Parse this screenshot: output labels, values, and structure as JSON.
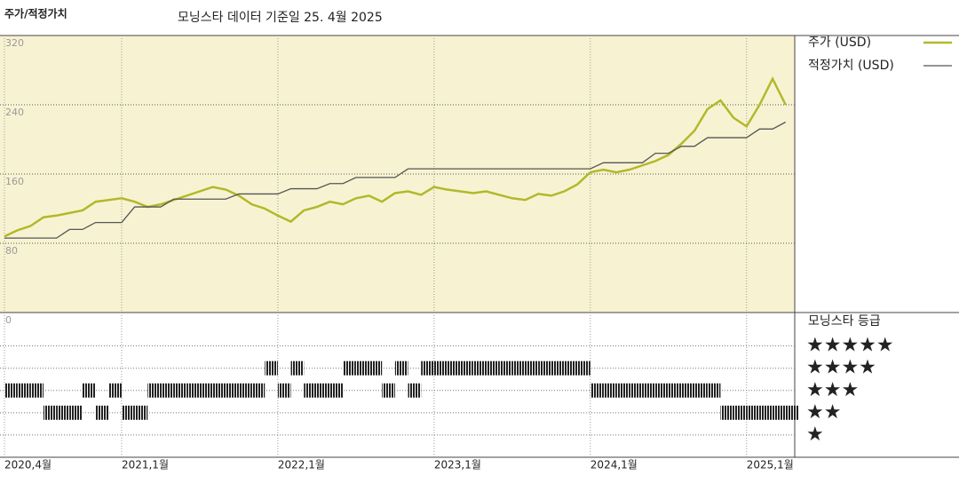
{
  "chart_data": [
    {
      "type": "line",
      "title": "주가/적정가치",
      "subtitle": "모닝스타 데이터 기준일 25. 4월 2025",
      "categories": [
        "2020,4월",
        null,
        null,
        null,
        null,
        null,
        null,
        null,
        null,
        "2021,1월",
        null,
        null,
        null,
        null,
        null,
        null,
        null,
        null,
        null,
        null,
        null,
        "2022,1월",
        null,
        null,
        null,
        null,
        null,
        null,
        null,
        null,
        null,
        null,
        null,
        "2023,1월",
        null,
        null,
        null,
        null,
        null,
        null,
        null,
        null,
        null,
        null,
        null,
        "2024,1월",
        null,
        null,
        null,
        null,
        null,
        null,
        null,
        null,
        null,
        null,
        null,
        "2025,1월",
        null,
        null,
        null
      ],
      "series": [
        {
          "name": "주가 (USD)",
          "color": "#b3b82a",
          "values": [
            88,
            95,
            100,
            110,
            112,
            115,
            118,
            128,
            130,
            132,
            128,
            122,
            125,
            130,
            135,
            140,
            145,
            142,
            135,
            125,
            120,
            112,
            105,
            118,
            122,
            128,
            125,
            132,
            135,
            128,
            138,
            140,
            136,
            145,
            142,
            140,
            138,
            140,
            136,
            132,
            130,
            137,
            135,
            140,
            148,
            162,
            165,
            162,
            165,
            170,
            175,
            182,
            195,
            210,
            235,
            245,
            225,
            215,
            240,
            270,
            240
          ]
        },
        {
          "name": "적정가치 (USD)",
          "color": "#555555",
          "values": [
            86,
            86,
            86,
            86,
            86,
            96,
            96,
            104,
            104,
            104,
            122,
            122,
            122,
            131,
            131,
            131,
            131,
            131,
            137,
            137,
            137,
            137,
            143,
            143,
            143,
            149,
            149,
            156,
            156,
            156,
            156,
            166,
            166,
            166,
            166,
            166,
            166,
            166,
            166,
            166,
            166,
            166,
            166,
            166,
            166,
            166,
            173,
            173,
            173,
            173,
            184,
            184,
            192,
            192,
            202,
            202,
            202,
            202,
            212,
            212,
            220
          ]
        }
      ],
      "ylim": [
        0,
        320
      ],
      "yticks": [
        0,
        80,
        160,
        240,
        320
      ],
      "grid": true
    },
    {
      "type": "rating",
      "title": "모닝스타 등급",
      "values": [
        3,
        3,
        3,
        2,
        2,
        2,
        3,
        2,
        3,
        2,
        2,
        3,
        3,
        3,
        3,
        3,
        3,
        3,
        3,
        3,
        4,
        3,
        4,
        3,
        3,
        3,
        4,
        4,
        4,
        3,
        4,
        3,
        4,
        4,
        4,
        4,
        4,
        4,
        4,
        4,
        4,
        4,
        4,
        4,
        4,
        3,
        3,
        3,
        3,
        3,
        3,
        3,
        3,
        3,
        3,
        2,
        2,
        2,
        2,
        2,
        2
      ],
      "ylim": [
        0,
        6.5
      ],
      "yticks": [
        {
          "value": 5,
          "label": "★★★★★"
        },
        {
          "value": 4,
          "label": "★★★★"
        },
        {
          "value": 3,
          "label": "★★★"
        },
        {
          "value": 2,
          "label": "★★"
        },
        {
          "value": 1,
          "label": "★"
        }
      ]
    }
  ]
}
